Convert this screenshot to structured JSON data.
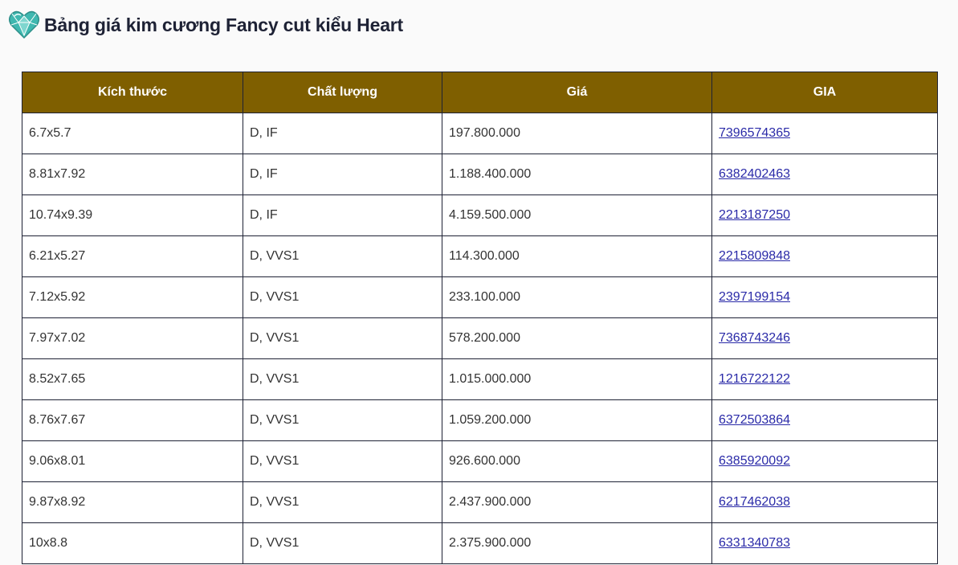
{
  "header": {
    "title": "Bảng giá kim cương Fancy cut kiểu Heart",
    "icon": "heart-diamond-icon"
  },
  "colors": {
    "header_bg": "#7f5f00",
    "header_text": "#ffffff",
    "border": "#1e2235",
    "link": "#2a2aa8",
    "icon": "#3fb8b0"
  },
  "table": {
    "columns": [
      "Kích thước",
      "Chất lượng",
      "Giá",
      "GIA"
    ],
    "rows": [
      {
        "size": "6.7x5.7",
        "quality": "D, IF",
        "price": "197.800.000",
        "gia": "7396574365"
      },
      {
        "size": "8.81x7.92",
        "quality": "D, IF",
        "price": "1.188.400.000",
        "gia": "6382402463"
      },
      {
        "size": "10.74x9.39",
        "quality": "D, IF",
        "price": "4.159.500.000",
        "gia": "2213187250"
      },
      {
        "size": "6.21x5.27",
        "quality": "D, VVS1",
        "price": "114.300.000",
        "gia": "2215809848"
      },
      {
        "size": "7.12x5.92",
        "quality": "D, VVS1",
        "price": "233.100.000",
        "gia": "2397199154"
      },
      {
        "size": "7.97x7.02",
        "quality": "D, VVS1",
        "price": "578.200.000",
        "gia": "7368743246"
      },
      {
        "size": "8.52x7.65",
        "quality": "D, VVS1",
        "price": "1.015.000.000",
        "gia": "1216722122"
      },
      {
        "size": "8.76x7.67",
        "quality": "D, VVS1",
        "price": "1.059.200.000",
        "gia": "6372503864"
      },
      {
        "size": "9.06x8.01",
        "quality": "D, VVS1",
        "price": "926.600.000",
        "gia": "6385920092"
      },
      {
        "size": "9.87x8.92",
        "quality": "D, VVS1",
        "price": "2.437.900.000",
        "gia": "6217462038"
      },
      {
        "size": "10x8.8",
        "quality": "D, VVS1",
        "price": "2.375.900.000",
        "gia": "6331340783"
      }
    ]
  }
}
